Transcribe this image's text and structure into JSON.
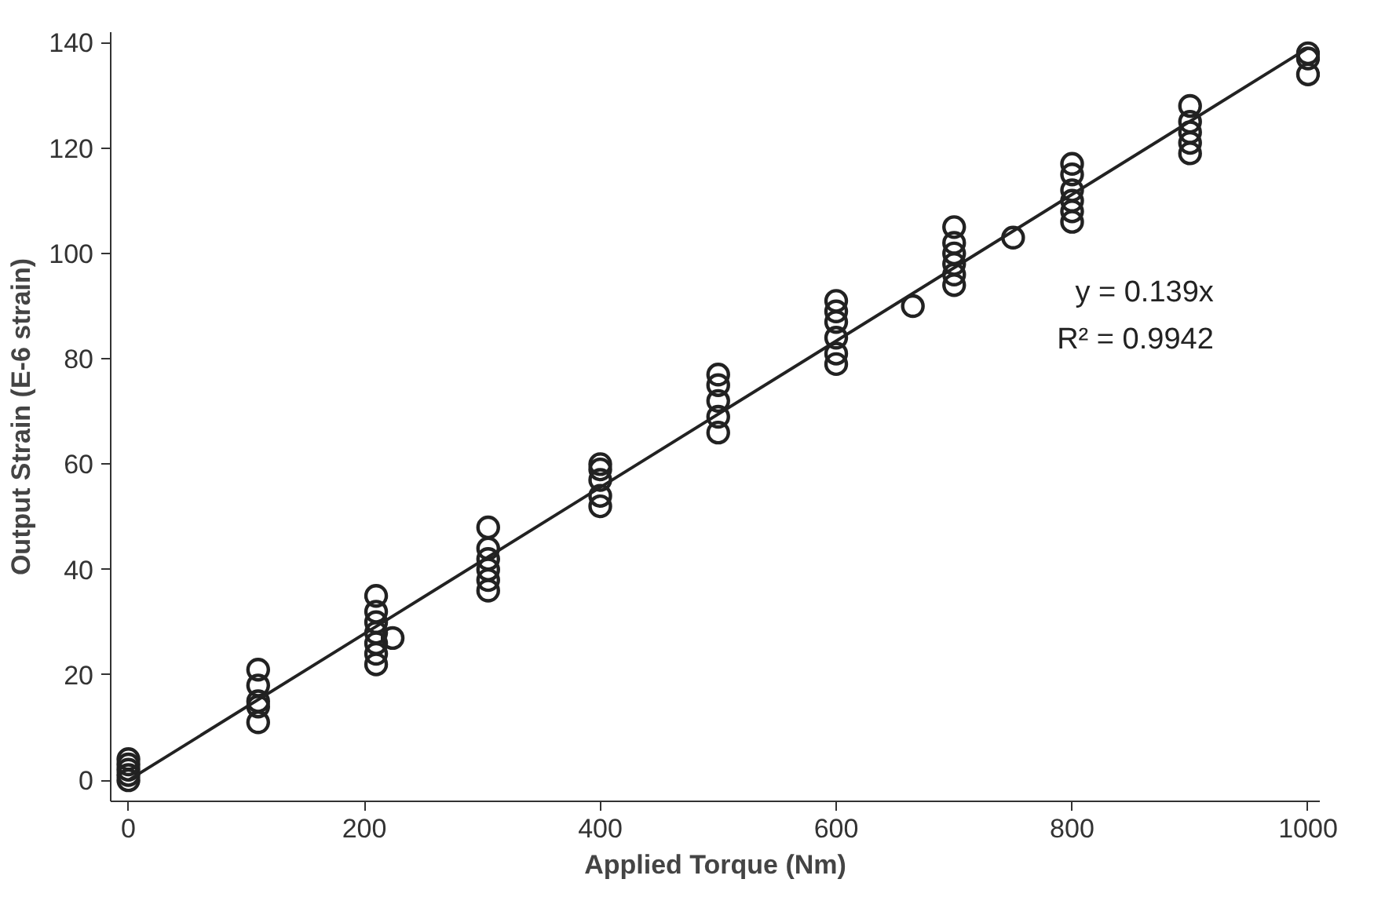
{
  "chart_data": {
    "type": "scatter",
    "xlabel": "Applied Torque (Nm)",
    "ylabel": "Output Strain (E-6 strain)",
    "xlim": [
      -15,
      1010
    ],
    "ylim": [
      -4,
      142
    ],
    "xticks": [
      0,
      200,
      400,
      600,
      800,
      1000
    ],
    "yticks": [
      0,
      20,
      40,
      60,
      80,
      100,
      120,
      140
    ],
    "grid": false,
    "marker": "circle",
    "annotations": [
      "y = 0.139x",
      "R² = 0.9942"
    ],
    "series": [
      {
        "color": "#222222",
        "x": [
          0,
          0,
          0,
          0,
          0,
          110,
          110,
          110,
          110,
          110,
          210,
          210,
          210,
          210,
          210,
          210,
          210,
          224,
          305,
          305,
          305,
          305,
          305,
          305,
          400,
          400,
          400,
          400,
          400,
          500,
          500,
          500,
          500,
          500,
          600,
          600,
          600,
          600,
          600,
          600,
          665,
          700,
          700,
          700,
          700,
          700,
          700,
          750,
          800,
          800,
          800,
          800,
          800,
          800,
          900,
          900,
          900,
          900,
          900,
          1000,
          1000,
          1000
        ],
        "values": [
          0,
          1,
          2,
          3,
          4,
          21,
          18,
          15,
          14,
          11,
          35,
          32,
          30,
          28,
          26,
          24,
          22,
          27,
          48,
          44,
          42,
          40,
          38,
          36,
          60,
          59,
          57,
          54,
          52,
          77,
          75,
          72,
          69,
          66,
          91,
          89,
          87,
          84,
          81,
          79,
          90,
          105,
          102,
          100,
          98,
          96,
          94,
          103,
          117,
          115,
          112,
          110,
          108,
          106,
          128,
          125,
          123,
          121,
          119,
          138,
          137,
          134
        ]
      },
      {
        "type": "line",
        "color": "#222222",
        "marker": "none",
        "x": [
          0,
          1000
        ],
        "values": [
          0,
          139
        ]
      }
    ]
  }
}
